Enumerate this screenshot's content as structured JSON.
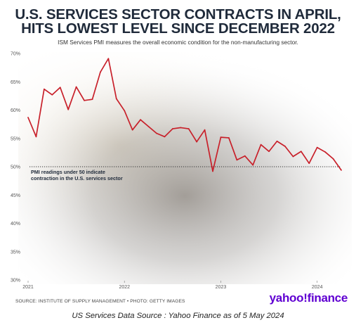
{
  "title_line1": "U.S. SERVICES SECTOR CONTRACTS IN APRIL,",
  "title_line2": "HITS LOWEST LEVEL SINCE DECEMBER 2022",
  "subtitle": "ISM Services PMI measures the overall economic condition for the non-manufacturing sector.",
  "footer_source": "SOURCE: INSTITUTE OF SUPPLY MANAGEMENT • PHOTO: GETTY IMAGES",
  "brand": "yahoo!finance",
  "caption": "US Services Data    Source : Yahoo Finance as of 5 May 2024",
  "colors": {
    "line": "#c8202a",
    "title": "#1f2a3a",
    "brand": "#6001d2",
    "reference_line": "#333333"
  },
  "chart_data": {
    "type": "line",
    "title": "U.S. SERVICES SECTOR CONTRACTS IN APRIL, HITS LOWEST LEVEL SINCE DECEMBER 2022",
    "subtitle": "ISM Services PMI measures the overall economic condition for the non-manufacturing sector.",
    "xlabel": "",
    "ylabel": "",
    "x": [
      "2021-01",
      "2021-02",
      "2021-03",
      "2021-04",
      "2021-05",
      "2021-06",
      "2021-07",
      "2021-08",
      "2021-09",
      "2021-10",
      "2021-11",
      "2021-12",
      "2022-01",
      "2022-02",
      "2022-03",
      "2022-04",
      "2022-05",
      "2022-06",
      "2022-07",
      "2022-08",
      "2022-09",
      "2022-10",
      "2022-11",
      "2022-12",
      "2023-01",
      "2023-02",
      "2023-03",
      "2023-04",
      "2023-05",
      "2023-06",
      "2023-07",
      "2023-08",
      "2023-09",
      "2023-10",
      "2023-11",
      "2023-12",
      "2024-01",
      "2024-02",
      "2024-03",
      "2024-04"
    ],
    "series": [
      {
        "values": [
          58.7,
          55.3,
          63.7,
          62.7,
          64.0,
          60.1,
          64.1,
          61.7,
          61.9,
          66.7,
          69.1,
          62.0,
          59.9,
          56.5,
          58.3,
          57.1,
          55.9,
          55.3,
          56.7,
          56.9,
          56.7,
          54.4,
          56.5,
          49.2,
          55.2,
          55.1,
          51.2,
          51.9,
          50.3,
          53.9,
          52.7,
          54.5,
          53.6,
          51.8,
          52.7,
          50.6,
          53.4,
          52.6,
          51.4,
          49.4
        ]
      }
    ],
    "ylim": [
      30,
      70
    ],
    "y_ticks": [
      30,
      35,
      40,
      45,
      50,
      55,
      60,
      65,
      70
    ],
    "y_tick_labels": [
      "30%",
      "35%",
      "40%",
      "45%",
      "50%",
      "55%",
      "60%",
      "65%",
      "70%"
    ],
    "x_ticks": [
      "2021",
      "2022",
      "2023",
      "2024"
    ],
    "reference_line": {
      "y": 50,
      "style": "dotted"
    },
    "annotation": {
      "line1": "PMI readings under 50 indicate",
      "line2": "contraction in the U.S. services sector"
    },
    "grid": false,
    "legend": "none"
  }
}
